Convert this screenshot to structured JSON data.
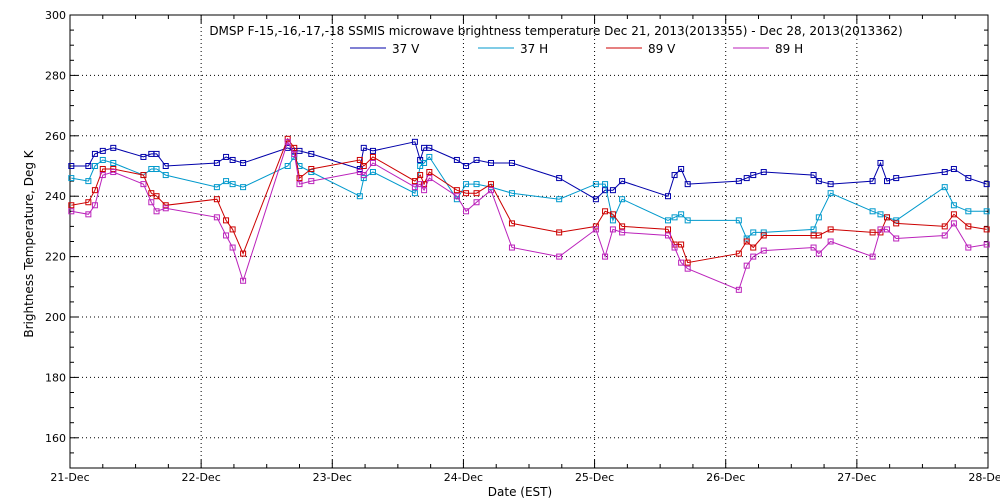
{
  "chart_data": {
    "type": "line",
    "title": "DMSP F-15,-16,-17,-18 SSMIS microwave brightness temperature Dec 21, 2013(2013355) - Dec 28, 2013(2013362)",
    "xlabel": "Date (EST)",
    "ylabel": "Brightness Temperature, Deg K",
    "xlim": [
      0,
      7
    ],
    "ylim": [
      150,
      300
    ],
    "x_ticks": [
      {
        "value": 0,
        "label": "21-Dec"
      },
      {
        "value": 1,
        "label": "22-Dec"
      },
      {
        "value": 2,
        "label": "23-Dec"
      },
      {
        "value": 3,
        "label": "24-Dec"
      },
      {
        "value": 4,
        "label": "25-Dec"
      },
      {
        "value": 5,
        "label": "26-Dec"
      },
      {
        "value": 6,
        "label": "27-Dec"
      },
      {
        "value": 7,
        "label": "28-Dec"
      }
    ],
    "y_ticks": [
      160,
      180,
      200,
      220,
      240,
      260,
      280,
      300
    ],
    "grid": true,
    "legend_position": "top",
    "series": [
      {
        "name": "37 V",
        "color": "#0000aa",
        "x": [
          0.01,
          0.14,
          0.19,
          0.25,
          0.33,
          0.56,
          0.62,
          0.66,
          0.73,
          1.12,
          1.19,
          1.24,
          1.32,
          1.66,
          1.71,
          1.75,
          1.84,
          2.21,
          2.24,
          2.31,
          2.63,
          2.67,
          2.7,
          2.74,
          2.95,
          3.02,
          3.1,
          3.21,
          3.37,
          3.73,
          4.01,
          4.08,
          4.14,
          4.21,
          4.56,
          4.61,
          4.66,
          4.71,
          5.1,
          5.16,
          5.21,
          5.29,
          5.67,
          5.71,
          5.8,
          6.12,
          6.18,
          6.23,
          6.3,
          6.67,
          6.74,
          6.85,
          6.99
        ],
        "values": [
          250,
          250,
          254,
          255,
          256,
          253,
          254,
          254,
          250,
          251,
          253,
          252,
          251,
          256,
          255,
          255,
          254,
          249,
          256,
          255,
          258,
          252,
          256,
          256,
          252,
          250,
          252,
          251,
          251,
          246,
          239,
          242,
          242,
          245,
          240,
          247,
          249,
          244,
          245,
          246,
          247,
          248,
          247,
          245,
          244,
          245,
          251,
          245,
          246,
          248,
          249,
          246,
          244
        ]
      },
      {
        "name": "37 H",
        "color": "#0099cc",
        "x": [
          0.01,
          0.14,
          0.19,
          0.25,
          0.33,
          0.56,
          0.62,
          0.66,
          0.73,
          1.12,
          1.19,
          1.24,
          1.32,
          1.66,
          1.71,
          1.75,
          1.84,
          2.21,
          2.24,
          2.31,
          2.63,
          2.67,
          2.7,
          2.74,
          2.95,
          3.02,
          3.1,
          3.21,
          3.37,
          3.73,
          4.01,
          4.08,
          4.14,
          4.21,
          4.56,
          4.61,
          4.66,
          4.71,
          5.1,
          5.16,
          5.21,
          5.29,
          5.67,
          5.71,
          5.8,
          6.12,
          6.18,
          6.23,
          6.3,
          6.67,
          6.74,
          6.85,
          6.99
        ],
        "values": [
          246,
          245,
          250,
          252,
          251,
          247,
          249,
          249,
          247,
          243,
          245,
          244,
          243,
          250,
          253,
          250,
          248,
          240,
          246,
          248,
          241,
          250,
          251,
          253,
          239,
          244,
          244,
          243,
          241,
          239,
          244,
          244,
          232,
          239,
          232,
          233,
          234,
          232,
          232,
          226,
          228,
          228,
          229,
          233,
          241,
          235,
          234,
          233,
          232,
          243,
          237,
          235,
          235
        ]
      },
      {
        "name": "89 V",
        "color": "#cc0000",
        "x": [
          0.01,
          0.14,
          0.19,
          0.25,
          0.33,
          0.56,
          0.62,
          0.66,
          0.73,
          1.12,
          1.19,
          1.24,
          1.32,
          1.66,
          1.71,
          1.75,
          1.84,
          2.21,
          2.24,
          2.31,
          2.63,
          2.67,
          2.7,
          2.74,
          2.95,
          3.02,
          3.1,
          3.21,
          3.37,
          3.73,
          4.01,
          4.08,
          4.14,
          4.21,
          4.56,
          4.61,
          4.66,
          4.71,
          5.1,
          5.16,
          5.21,
          5.29,
          5.67,
          5.71,
          5.8,
          6.12,
          6.18,
          6.23,
          6.3,
          6.67,
          6.74,
          6.85,
          6.99
        ],
        "values": [
          237,
          238,
          242,
          249,
          249,
          247,
          241,
          240,
          237,
          239,
          232,
          229,
          221,
          259,
          256,
          246,
          249,
          252,
          250,
          253,
          245,
          247,
          244,
          248,
          242,
          241,
          241,
          244,
          231,
          228,
          230,
          235,
          234,
          230,
          229,
          224,
          224,
          218,
          221,
          225,
          223,
          227,
          227,
          227,
          229,
          228,
          228,
          233,
          231,
          230,
          234,
          230,
          229
        ]
      },
      {
        "name": "89 H",
        "color": "#bb22bb",
        "x": [
          0.01,
          0.14,
          0.19,
          0.25,
          0.33,
          0.56,
          0.62,
          0.66,
          0.73,
          1.12,
          1.19,
          1.24,
          1.32,
          1.66,
          1.71,
          1.75,
          1.84,
          2.21,
          2.24,
          2.31,
          2.63,
          2.67,
          2.7,
          2.74,
          2.95,
          3.02,
          3.1,
          3.21,
          3.37,
          3.73,
          4.01,
          4.08,
          4.14,
          4.21,
          4.56,
          4.61,
          4.66,
          4.71,
          5.1,
          5.16,
          5.21,
          5.29,
          5.67,
          5.71,
          5.8,
          6.12,
          6.18,
          6.23,
          6.3,
          6.67,
          6.74,
          6.85,
          6.99
        ],
        "values": [
          235,
          234,
          237,
          247,
          248,
          244,
          238,
          235,
          236,
          233,
          227,
          223,
          212,
          258,
          254,
          244,
          245,
          248,
          247,
          251,
          243,
          244,
          242,
          246,
          240,
          235,
          238,
          242,
          223,
          220,
          229,
          220,
          229,
          228,
          227,
          223,
          218,
          216,
          209,
          217,
          220,
          222,
          223,
          221,
          225,
          220,
          229,
          229,
          226,
          227,
          231,
          223,
          224
        ]
      }
    ]
  }
}
